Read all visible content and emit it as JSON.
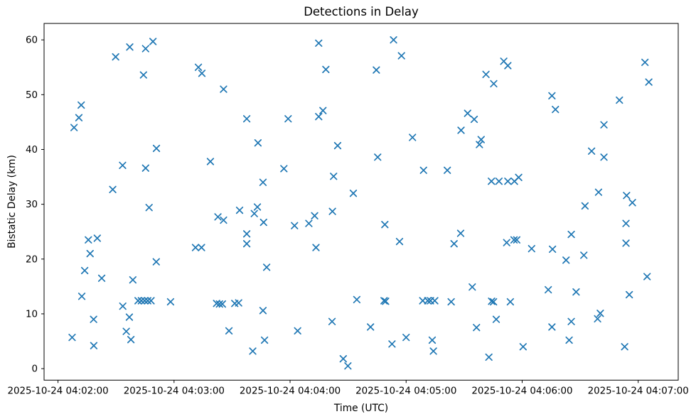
{
  "chart_data": {
    "type": "scatter",
    "title": "Detections in Delay",
    "xlabel": "Time (UTC)",
    "ylabel": "Bistatic Delay (km)",
    "marker": "x",
    "marker_color": "#1f77b4",
    "axis_color": "#000000",
    "x_tick_labels": [
      "2025-10-24 04:02:00",
      "2025-10-24 04:03:00",
      "2025-10-24 04:04:00",
      "2025-10-24 04:05:00",
      "2025-10-24 04:06:00",
      "2025-10-24 04:07:00"
    ],
    "x_tick_seconds": [
      0,
      60,
      120,
      180,
      240,
      300
    ],
    "x_axis_note": "seconds after 2025-10-24 04:02:00 UTC",
    "y_tick_labels": [
      "0",
      "10",
      "20",
      "30",
      "40",
      "50",
      "60"
    ],
    "y_tick_values": [
      0,
      10,
      20,
      30,
      40,
      50,
      60
    ],
    "xlim_seconds": [
      -7.2,
      320.7
    ],
    "ylim": [
      -2.1,
      63.0
    ],
    "grid": false,
    "legend": false,
    "points": [
      [
        37.1,
        58.7
      ],
      [
        45.3,
        58.4
      ],
      [
        49.1,
        59.7
      ],
      [
        29.8,
        56.9
      ],
      [
        44.2,
        53.6
      ],
      [
        12.0,
        48.1
      ],
      [
        10.8,
        45.8
      ],
      [
        8.3,
        44.0
      ],
      [
        50.9,
        40.2
      ],
      [
        33.4,
        37.1
      ],
      [
        45.3,
        36.6
      ],
      [
        28.3,
        32.7
      ],
      [
        72.6,
        55.0
      ],
      [
        74.4,
        53.9
      ],
      [
        47.1,
        29.4
      ],
      [
        15.7,
        23.5
      ],
      [
        20.3,
        23.8
      ],
      [
        16.6,
        21.0
      ],
      [
        13.8,
        17.9
      ],
      [
        22.6,
        16.5
      ],
      [
        38.7,
        16.2
      ],
      [
        50.8,
        19.5
      ],
      [
        12.3,
        13.2
      ],
      [
        41.4,
        12.4
      ],
      [
        43.1,
        12.4
      ],
      [
        44.8,
        12.4
      ],
      [
        46.4,
        12.4
      ],
      [
        48.1,
        12.4
      ],
      [
        58.2,
        12.2
      ],
      [
        33.5,
        11.4
      ],
      [
        36.9,
        9.4
      ],
      [
        18.4,
        9.0
      ],
      [
        35.3,
        6.8
      ],
      [
        37.7,
        5.3
      ],
      [
        7.3,
        5.7
      ],
      [
        18.5,
        4.2
      ],
      [
        71.1,
        22.1
      ],
      [
        74.2,
        22.1
      ],
      [
        134.8,
        59.4
      ],
      [
        138.5,
        54.6
      ],
      [
        85.6,
        51.0
      ],
      [
        97.6,
        45.6
      ],
      [
        119.0,
        45.6
      ],
      [
        137.0,
        47.1
      ],
      [
        134.8,
        46.0
      ],
      [
        103.4,
        41.2
      ],
      [
        144.6,
        40.7
      ],
      [
        78.8,
        37.8
      ],
      [
        116.8,
        36.5
      ],
      [
        106.0,
        34.0
      ],
      [
        142.5,
        35.1
      ],
      [
        152.7,
        32.0
      ],
      [
        93.9,
        28.9
      ],
      [
        103.1,
        29.5
      ],
      [
        101.5,
        28.3
      ],
      [
        82.7,
        27.7
      ],
      [
        85.6,
        27.1
      ],
      [
        106.3,
        26.7
      ],
      [
        141.9,
        28.7
      ],
      [
        132.7,
        27.9
      ],
      [
        129.7,
        26.5
      ],
      [
        122.3,
        26.1
      ],
      [
        97.6,
        24.6
      ],
      [
        97.6,
        22.8
      ],
      [
        133.4,
        22.1
      ],
      [
        107.9,
        18.5
      ],
      [
        154.5,
        12.6
      ],
      [
        82.0,
        11.9
      ],
      [
        83.5,
        11.8
      ],
      [
        85.0,
        11.8
      ],
      [
        91.4,
        11.9
      ],
      [
        93.4,
        12.0
      ],
      [
        106.0,
        10.6
      ],
      [
        141.7,
        8.6
      ],
      [
        88.4,
        6.9
      ],
      [
        123.9,
        6.9
      ],
      [
        106.8,
        5.2
      ],
      [
        100.7,
        3.2
      ],
      [
        147.5,
        1.8
      ],
      [
        149.9,
        0.5
      ],
      [
        173.5,
        60.0
      ],
      [
        177.6,
        57.1
      ],
      [
        164.6,
        54.5
      ],
      [
        230.5,
        56.1
      ],
      [
        232.6,
        55.3
      ],
      [
        221.3,
        53.7
      ],
      [
        225.3,
        52.0
      ],
      [
        211.8,
        46.6
      ],
      [
        215.2,
        45.5
      ],
      [
        208.4,
        43.5
      ],
      [
        183.3,
        42.2
      ],
      [
        218.8,
        41.8
      ],
      [
        217.9,
        40.9
      ],
      [
        165.3,
        38.6
      ],
      [
        189.0,
        36.2
      ],
      [
        201.3,
        36.2
      ],
      [
        224.1,
        34.2
      ],
      [
        228.0,
        34.2
      ],
      [
        232.6,
        34.2
      ],
      [
        236.0,
        34.2
      ],
      [
        238.2,
        34.9
      ],
      [
        169.0,
        26.3
      ],
      [
        176.6,
        23.2
      ],
      [
        208.2,
        24.7
      ],
      [
        204.8,
        22.8
      ],
      [
        232.0,
        23.0
      ],
      [
        235.8,
        23.5
      ],
      [
        237.2,
        23.5
      ],
      [
        214.2,
        14.9
      ],
      [
        168.6,
        12.4
      ],
      [
        169.4,
        12.3
      ],
      [
        188.6,
        12.4
      ],
      [
        191.2,
        12.4
      ],
      [
        192.6,
        12.4
      ],
      [
        194.8,
        12.4
      ],
      [
        203.3,
        12.2
      ],
      [
        224.2,
        12.3
      ],
      [
        225.2,
        12.2
      ],
      [
        233.9,
        12.2
      ],
      [
        226.6,
        9.0
      ],
      [
        161.6,
        7.6
      ],
      [
        216.4,
        7.5
      ],
      [
        180.0,
        5.7
      ],
      [
        172.7,
        4.5
      ],
      [
        193.5,
        5.2
      ],
      [
        194.1,
        3.2
      ],
      [
        222.8,
        2.1
      ],
      [
        240.5,
        4.0
      ],
      [
        303.5,
        55.9
      ],
      [
        305.5,
        52.3
      ],
      [
        255.4,
        49.8
      ],
      [
        257.2,
        47.3
      ],
      [
        290.3,
        49.0
      ],
      [
        282.3,
        44.5
      ],
      [
        275.9,
        39.7
      ],
      [
        282.3,
        38.6
      ],
      [
        279.5,
        32.2
      ],
      [
        272.5,
        29.7
      ],
      [
        294.0,
        31.6
      ],
      [
        297.0,
        30.3
      ],
      [
        293.7,
        26.5
      ],
      [
        265.4,
        24.5
      ],
      [
        293.7,
        22.9
      ],
      [
        244.9,
        21.9
      ],
      [
        255.7,
        21.8
      ],
      [
        262.7,
        19.8
      ],
      [
        271.9,
        20.7
      ],
      [
        304.6,
        16.8
      ],
      [
        253.5,
        14.4
      ],
      [
        267.9,
        14.0
      ],
      [
        295.4,
        13.5
      ],
      [
        280.4,
        10.1
      ],
      [
        279.0,
        9.1
      ],
      [
        265.4,
        8.6
      ],
      [
        255.4,
        7.6
      ],
      [
        264.3,
        5.2
      ],
      [
        293.0,
        4.0
      ]
    ]
  }
}
